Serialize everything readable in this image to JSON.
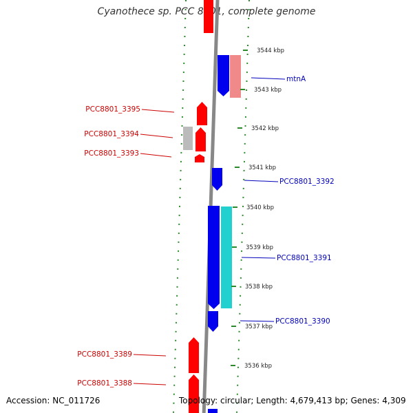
{
  "title": "Cyanothece sp. PCC 8801, complete genome",
  "footer": {
    "accession": "Accession: NC_011726",
    "topology": "Topology: circular; Length: 4,679,413 bp; Genes: 4,309"
  },
  "colors": {
    "backbone": "#888888",
    "ring": "#2a8a2a",
    "forward_gene": "#ff0000",
    "reverse_gene": "#0000ee",
    "light_forward": "#f08a8a",
    "light_cds": "#bbbbbb",
    "teal_cds": "#22d0d0",
    "left_label": "#cc0000",
    "right_label": "#0000bb"
  },
  "ticks": [
    "3544 kbp",
    "3543 kbp",
    "3542 kbp",
    "3541 kbp",
    "3540 kbp",
    "3539 kbp",
    "3538 kbp",
    "3537 kbp",
    "3536 kbp"
  ],
  "gene_labels_left": [
    "PCC8801_3395",
    "PCC8801_3394",
    "PCC8801_3393",
    "PCC8801_3389",
    "PCC8801_3388"
  ],
  "gene_labels_right": [
    "mtnA",
    "PCC8801_3392",
    "PCC8801_3391",
    "PCC8801_3390"
  ]
}
